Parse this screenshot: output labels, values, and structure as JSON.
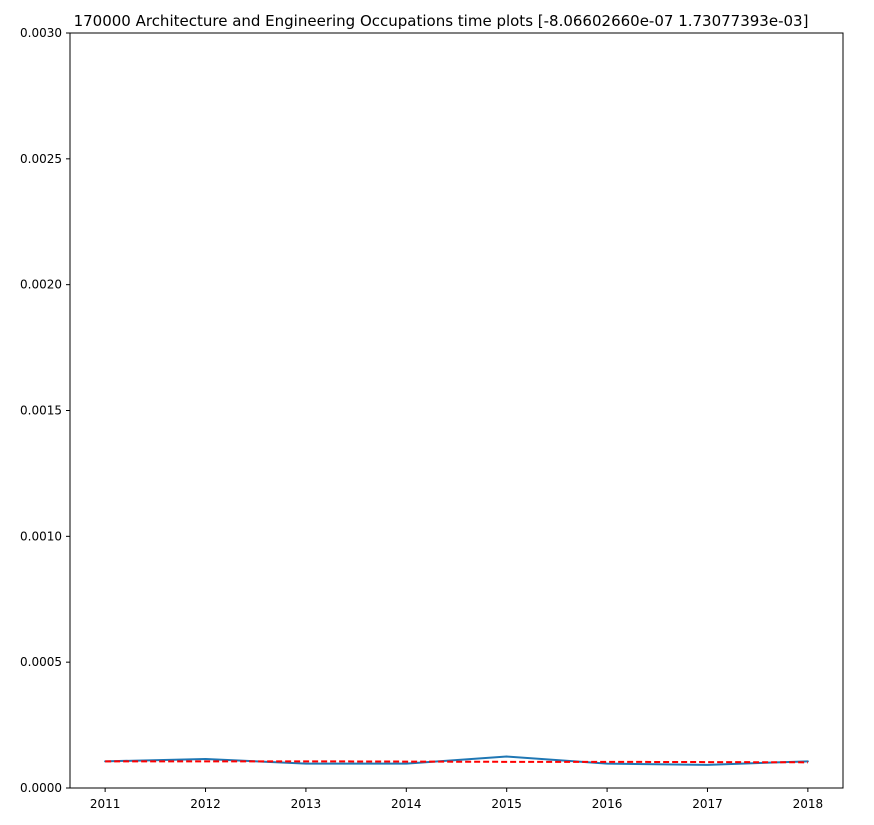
{
  "chart_data": {
    "type": "line",
    "title": "170000 Architecture and Engineering Occupations time plots [-8.06602660e-07  1.73077393e-03]",
    "xlabel": "",
    "ylabel": "",
    "x": [
      2011,
      2012,
      2013,
      2014,
      2015,
      2016,
      2017,
      2018
    ],
    "x_tick_labels": [
      "2011",
      "2012",
      "2013",
      "2014",
      "2015",
      "2016",
      "2017",
      "2018"
    ],
    "y_tick_values": [
      0.0,
      0.0005,
      0.001,
      0.0015,
      0.002,
      0.0025,
      0.003
    ],
    "y_tick_labels": [
      "0.0000",
      "0.0005",
      "0.0010",
      "0.0015",
      "0.0020",
      "0.0025",
      "0.0030"
    ],
    "xlim": [
      2010.65,
      2018.35
    ],
    "ylim": [
      0.0,
      0.003
    ],
    "grid": false,
    "legend": "none",
    "series": [
      {
        "style": "solid",
        "color": "#1f77b4",
        "values": [
          0.000106,
          0.000115,
          9.7e-05,
          9.7e-05,
          0.000125,
          9.7e-05,
          9.2e-05,
          0.000106
        ]
      },
      {
        "style": "dashed",
        "color": "#ff0000",
        "values": [
          0.000106,
          0.000106,
          0.000106,
          0.000105,
          0.000104,
          0.000104,
          0.000103,
          0.000102
        ]
      }
    ]
  }
}
